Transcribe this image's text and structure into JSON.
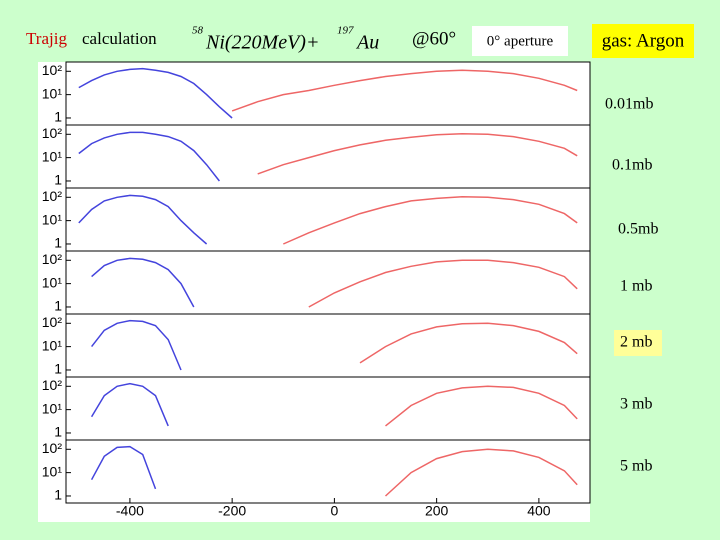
{
  "header": {
    "program": "Trajig",
    "title": "calculation",
    "reaction": {
      "a": "58",
      "projectile": "Ni(220MeV)+",
      "b": "197",
      "target": "Au"
    },
    "angle": "@60°",
    "aperture": "0° aperture",
    "gas": "gas: Argon"
  },
  "chart_data": [
    {
      "type": "line",
      "label": "0.01mb",
      "ylog": true,
      "xlim": [
        -525,
        500
      ],
      "ylim": [
        0.5,
        250
      ],
      "yticks": [
        {
          "value": 100,
          "label": "10²"
        },
        {
          "value": 10,
          "label": "10¹"
        },
        1
      ],
      "series": [
        {
          "color": "#4444dd",
          "x": [
            -500,
            -475,
            -450,
            -425,
            -400,
            -375,
            -350,
            -325,
            -300,
            -275,
            -250,
            -225,
            -200
          ],
          "values": [
            20,
            40,
            70,
            100,
            120,
            130,
            110,
            90,
            60,
            30,
            10,
            3,
            1
          ]
        },
        {
          "color": "#ee6666",
          "x": [
            -200,
            -150,
            -100,
            -50,
            0,
            50,
            100,
            150,
            200,
            250,
            300,
            350,
            400,
            450,
            475
          ],
          "values": [
            2,
            5,
            10,
            15,
            25,
            40,
            60,
            80,
            100,
            110,
            100,
            80,
            50,
            25,
            15
          ]
        }
      ]
    },
    {
      "type": "line",
      "label": "0.1mb",
      "ylog": true,
      "xlim": [
        -525,
        500
      ],
      "ylim": [
        0.5,
        250
      ],
      "yticks": [
        {
          "value": 100,
          "label": "10²"
        },
        {
          "value": 10,
          "label": "10¹"
        },
        1
      ],
      "series": [
        {
          "color": "#4444dd",
          "x": [
            -500,
            -475,
            -450,
            -425,
            -400,
            -375,
            -350,
            -325,
            -300,
            -275,
            -250,
            -225
          ],
          "values": [
            15,
            40,
            70,
            100,
            120,
            120,
            100,
            80,
            50,
            20,
            5,
            1
          ]
        },
        {
          "color": "#ee6666",
          "x": [
            -150,
            -100,
            -50,
            0,
            50,
            100,
            150,
            200,
            250,
            300,
            350,
            400,
            450,
            475
          ],
          "values": [
            2,
            5,
            10,
            20,
            35,
            55,
            75,
            95,
            105,
            100,
            80,
            50,
            25,
            12
          ]
        }
      ]
    },
    {
      "type": "line",
      "label": "0.5mb",
      "ylog": true,
      "xlim": [
        -525,
        500
      ],
      "ylim": [
        0.5,
        250
      ],
      "yticks": [
        {
          "value": 100,
          "label": "10²"
        },
        {
          "value": 10,
          "label": "10¹"
        },
        1
      ],
      "series": [
        {
          "color": "#4444dd",
          "x": [
            -500,
            -475,
            -450,
            -425,
            -400,
            -375,
            -350,
            -325,
            -300,
            -275,
            -250
          ],
          "values": [
            8,
            30,
            70,
            100,
            120,
            110,
            80,
            40,
            10,
            3,
            1
          ]
        },
        {
          "color": "#ee6666",
          "x": [
            -100,
            -50,
            0,
            50,
            100,
            150,
            200,
            250,
            300,
            350,
            400,
            450,
            475
          ],
          "values": [
            1,
            3,
            8,
            20,
            40,
            70,
            90,
            105,
            100,
            80,
            50,
            20,
            8
          ]
        }
      ]
    },
    {
      "type": "line",
      "label": "1 mb",
      "ylog": true,
      "xlim": [
        -525,
        500
      ],
      "ylim": [
        0.5,
        250
      ],
      "yticks": [
        {
          "value": 100,
          "label": "10²"
        },
        {
          "value": 10,
          "label": "10¹"
        },
        1
      ],
      "series": [
        {
          "color": "#4444dd",
          "x": [
            -475,
            -450,
            -425,
            -400,
            -375,
            -350,
            -325,
            -300,
            -275
          ],
          "values": [
            20,
            60,
            100,
            120,
            110,
            80,
            40,
            10,
            1
          ]
        },
        {
          "color": "#ee6666",
          "x": [
            -50,
            0,
            50,
            100,
            150,
            200,
            250,
            300,
            350,
            400,
            450,
            475
          ],
          "values": [
            1,
            4,
            12,
            30,
            55,
            85,
            100,
            100,
            80,
            50,
            20,
            6
          ]
        }
      ]
    },
    {
      "type": "line",
      "label": "2 mb",
      "ylog": true,
      "xlim": [
        -525,
        500
      ],
      "ylim": [
        0.5,
        250
      ],
      "yticks": [
        {
          "value": 100,
          "label": "10²"
        },
        {
          "value": 10,
          "label": "10¹"
        },
        1
      ],
      "series": [
        {
          "color": "#4444dd",
          "x": [
            -475,
            -450,
            -425,
            -400,
            -375,
            -350,
            -325,
            -300
          ],
          "values": [
            10,
            50,
            100,
            130,
            120,
            80,
            20,
            1
          ]
        },
        {
          "color": "#ee6666",
          "x": [
            50,
            100,
            150,
            200,
            250,
            300,
            350,
            400,
            450,
            475
          ],
          "values": [
            2,
            10,
            35,
            70,
            95,
            100,
            80,
            45,
            15,
            5
          ]
        }
      ]
    },
    {
      "type": "line",
      "label": "3 mb",
      "ylog": true,
      "xlim": [
        -525,
        500
      ],
      "ylim": [
        0.5,
        250
      ],
      "yticks": [
        {
          "value": 100,
          "label": "10²"
        },
        {
          "value": 10,
          "label": "10¹"
        },
        1
      ],
      "series": [
        {
          "color": "#4444dd",
          "x": [
            -475,
            -450,
            -425,
            -400,
            -375,
            -350,
            -325
          ],
          "values": [
            5,
            40,
            100,
            130,
            100,
            40,
            2
          ]
        },
        {
          "color": "#ee6666",
          "x": [
            100,
            150,
            200,
            250,
            300,
            350,
            400,
            450,
            475
          ],
          "values": [
            2,
            15,
            50,
            85,
            100,
            90,
            50,
            15,
            4
          ]
        }
      ]
    },
    {
      "type": "line",
      "label": "5 mb",
      "ylog": true,
      "xlim": [
        -525,
        500
      ],
      "ylim": [
        0.5,
        250
      ],
      "yticks": [
        {
          "value": 100,
          "label": "10²"
        },
        {
          "value": 10,
          "label": "10¹"
        },
        1
      ],
      "xticks": [
        -400,
        -200,
        0,
        200,
        400
      ],
      "series": [
        {
          "color": "#4444dd",
          "x": [
            -475,
            -450,
            -425,
            -400,
            -375,
            -350
          ],
          "values": [
            5,
            50,
            120,
            130,
            60,
            2
          ]
        },
        {
          "color": "#ee6666",
          "x": [
            100,
            150,
            200,
            250,
            300,
            350,
            400,
            450,
            475
          ],
          "values": [
            1,
            10,
            40,
            80,
            100,
            85,
            45,
            12,
            3
          ]
        }
      ]
    }
  ]
}
